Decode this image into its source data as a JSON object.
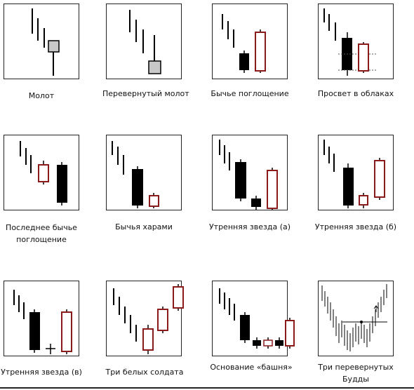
{
  "patterns": [
    {
      "id": "hammer",
      "label": "Молот"
    },
    {
      "id": "inverted-hammer",
      "label": "Перевернутый молот"
    },
    {
      "id": "bullish-engulfing",
      "label": "Бычье поглощение"
    },
    {
      "id": "piercing-line",
      "label": "Просвет в облаках"
    },
    {
      "id": "last-engulfing-bottom",
      "label": "Последнее бычье поглощение"
    },
    {
      "id": "bullish-harami",
      "label": "Бычья харами"
    },
    {
      "id": "morning-star-a",
      "label": "Утренняя звезда (а)"
    },
    {
      "id": "morning-star-b",
      "label": "Утренняя звезда (б)"
    },
    {
      "id": "morning-star-c",
      "label": "Утренняя звезда (в)"
    },
    {
      "id": "three-white-soldiers",
      "label": "Три белых солдата"
    },
    {
      "id": "tower-bottom",
      "label": "Основание «башня»"
    },
    {
      "id": "inverse-three-buddhas",
      "label": "Три перевернутых Будды"
    }
  ],
  "colors": {
    "bearish": "#000000",
    "bullish_border": "#8b1a1a",
    "hammer_body": "#c8c8c8",
    "frame": "#222222"
  }
}
